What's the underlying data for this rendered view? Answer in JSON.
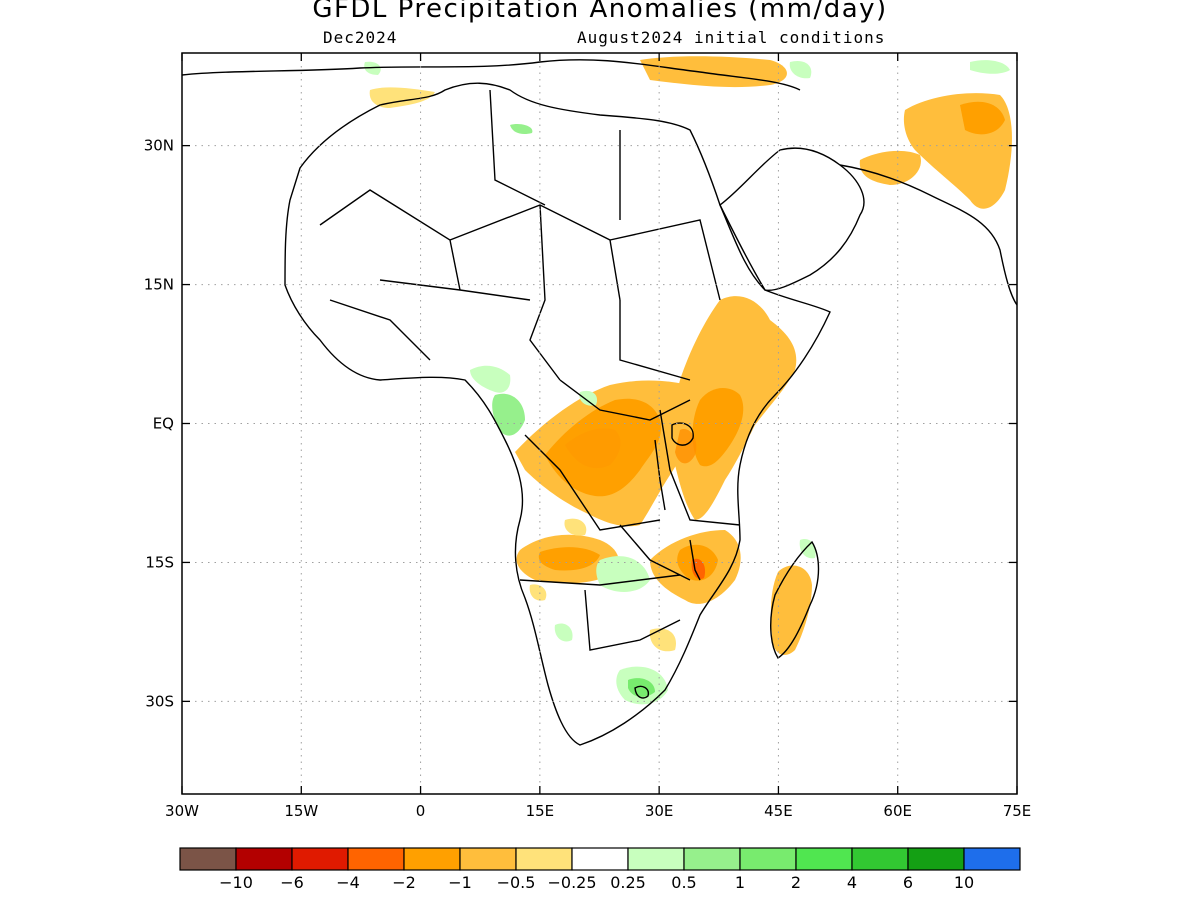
{
  "title": "GFDL Precipitation Anomalies (mm/day)",
  "valid_month": "Dec2024",
  "initial_conditions": "August2024 initial conditions",
  "axes": {
    "lon_ticks": [
      {
        "label": "30W",
        "value": -30
      },
      {
        "label": "15W",
        "value": -15
      },
      {
        "label": "0",
        "value": 0
      },
      {
        "label": "15E",
        "value": 15
      },
      {
        "label": "30E",
        "value": 30
      },
      {
        "label": "45E",
        "value": 45
      },
      {
        "label": "60E",
        "value": 60
      },
      {
        "label": "75E",
        "value": 75
      }
    ],
    "lat_ticks": [
      {
        "label": "30N",
        "value": 30
      },
      {
        "label": "15N",
        "value": 15
      },
      {
        "label": "EQ",
        "value": 0
      },
      {
        "label": "15S",
        "value": -15
      },
      {
        "label": "30S",
        "value": -30
      }
    ],
    "lon_range": [
      -30,
      75
    ],
    "lat_range": [
      -40,
      40
    ],
    "grid": "dotted"
  },
  "colorbar": {
    "colors": [
      "#7b5447",
      "#b30000",
      "#e01a00",
      "#ff6400",
      "#ffa000",
      "#ffbe3c",
      "#ffe27a",
      "#ffffff",
      "#c8ffbe",
      "#96f08c",
      "#78eb6e",
      "#50e650",
      "#32c832",
      "#14a014",
      "#1e6eeb"
    ],
    "labels": [
      "−10",
      "−6",
      "−4",
      "−2",
      "−1",
      "−0.5",
      "−0.25",
      "0.25",
      "0.5",
      "1",
      "2",
      "4",
      "6",
      "10"
    ]
  }
}
